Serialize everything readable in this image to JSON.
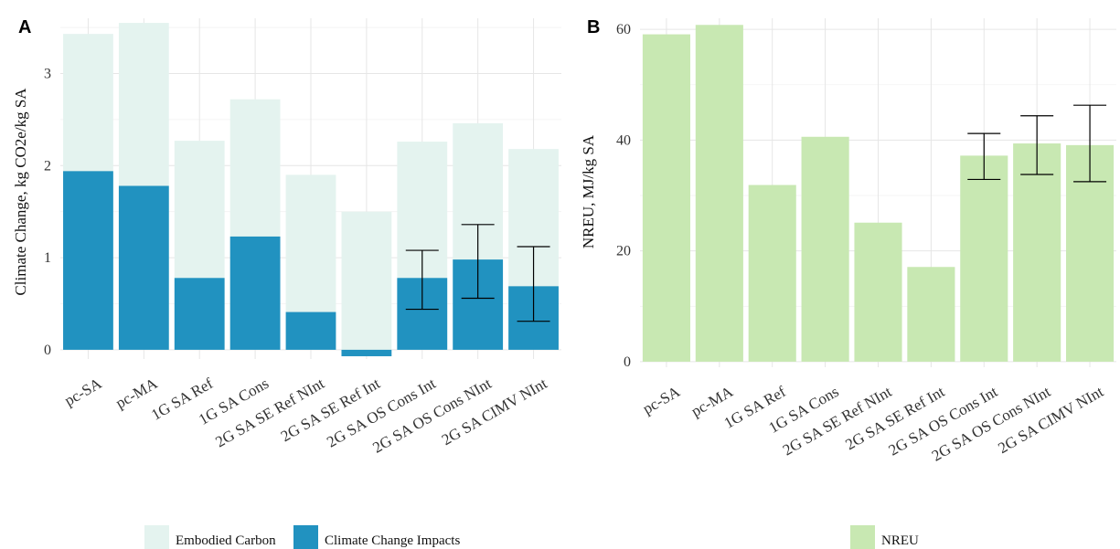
{
  "chart_data": [
    {
      "panel": "A",
      "type": "bar",
      "ylabel": "Climate Change, kg CO2e/kg SA",
      "xlabel": "",
      "ylim": [
        -0.1,
        3.6
      ],
      "yticks": [
        0,
        1,
        2,
        3
      ],
      "grid": true,
      "legend_position": "bottom",
      "categories": [
        "pc-SA",
        "pc-MA",
        "1G SA  Ref",
        "1G SA  Cons",
        "2G SA SE Ref NInt",
        "2G SA SE Ref Int",
        "2G SA OS Cons Int",
        "2G SA OS Cons NInt",
        "2G SA CIMV NInt"
      ],
      "series": [
        {
          "name": "Embodied Carbon",
          "color": "#e4f3ef",
          "values": [
            3.43,
            3.55,
            2.27,
            2.72,
            1.9,
            1.5,
            2.26,
            2.46,
            2.18
          ]
        },
        {
          "name": "Climate Change Impacts",
          "color": "#2192c0",
          "values": [
            1.94,
            1.78,
            0.78,
            1.23,
            0.41,
            -0.07,
            0.78,
            0.98,
            0.69
          ]
        }
      ],
      "error_bars": {
        "series": "Climate Change Impacts",
        "low": [
          null,
          null,
          null,
          null,
          null,
          null,
          0.44,
          0.56,
          0.31
        ],
        "high": [
          null,
          null,
          null,
          null,
          null,
          null,
          1.08,
          1.36,
          1.12
        ]
      }
    },
    {
      "panel": "B",
      "type": "bar",
      "ylabel": "NREU, MJ/kg SA",
      "xlabel": "",
      "ylim": [
        -1,
        62
      ],
      "yticks": [
        0,
        20,
        40,
        60
      ],
      "grid": true,
      "legend_position": "bottom",
      "categories": [
        "pc-SA",
        "pc-MA",
        "1G SA  Ref",
        "1G SA  Cons",
        "2G SA SE Ref NInt",
        "2G SA SE Ref Int",
        "2G SA OS Cons Int",
        "2G SA OS Cons NInt",
        "2G SA CIMV NInt"
      ],
      "series": [
        {
          "name": "NREU",
          "color": "#c8e8b2",
          "values": [
            59.1,
            60.8,
            31.9,
            40.6,
            25.1,
            17.1,
            37.2,
            39.4,
            39.1
          ]
        }
      ],
      "error_bars": {
        "series": "NREU",
        "low": [
          null,
          null,
          null,
          null,
          null,
          null,
          32.9,
          33.8,
          32.5
        ],
        "high": [
          null,
          null,
          null,
          null,
          null,
          null,
          41.2,
          44.4,
          46.3
        ]
      }
    }
  ]
}
